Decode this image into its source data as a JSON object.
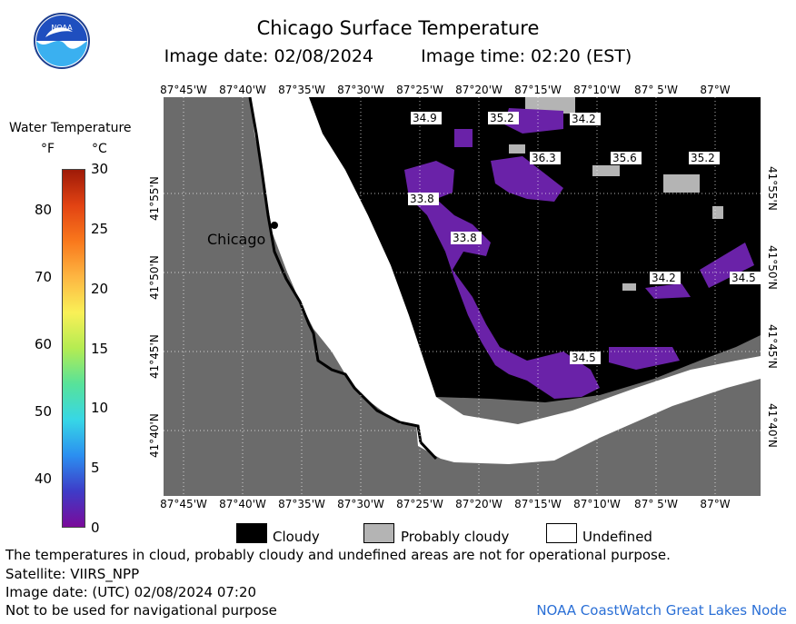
{
  "header": {
    "title": "Chicago Surface Temperature",
    "image_date_label": "Image date: 02/08/2024",
    "image_time_label": "Image time: 02:20 (EST)"
  },
  "logo": {
    "text": "NOAA"
  },
  "colorbar": {
    "title": "Water Temperature",
    "unit_f": "°F",
    "unit_c": "°C",
    "f_ticks": [
      "80",
      "70",
      "60",
      "50",
      "40"
    ],
    "c_ticks": [
      "30",
      "25",
      "20",
      "15",
      "10",
      "5",
      "0"
    ],
    "colors": [
      "#7a0a9a",
      "#3e3cc8",
      "#2b8ff0",
      "#37d7e6",
      "#57e29a",
      "#b4ec52",
      "#f9f057",
      "#fdb642",
      "#f9781c",
      "#e24313",
      "#9e1a08"
    ]
  },
  "map": {
    "city_label": "Chicago",
    "lon_labels": [
      "87°45'W",
      "87°40'W",
      "87°35'W",
      "87°30'W",
      "87°25'W",
      "87°20'W",
      "87°15'W",
      "87°10'W",
      "87° 5'W",
      "87°W"
    ],
    "lat_labels": [
      "41°55'N",
      "41°50'N",
      "41°45'N",
      "41°40'N"
    ],
    "temp_labels": [
      "34.9",
      "35.2",
      "34.2",
      "36.3",
      "35.6",
      "35.2",
      "33.8",
      "33.8",
      "34.2",
      "34.5",
      "34.5"
    ],
    "colors": {
      "land": "#6b6b6b",
      "cloudy": "#000000",
      "probably_cloudy": "#b4b4b4",
      "undefined": "#ffffff",
      "cold_water": "#6a22a8"
    }
  },
  "legend": {
    "cloudy": "Cloudy",
    "probably_cloudy": "Probably cloudy",
    "undefined": "Undefined"
  },
  "footer": {
    "disclaimer": "The temperatures in cloud, probably cloudy and undefined areas are not for operational purpose.",
    "satellite": "Satellite: VIIRS_NPP",
    "utc_date": "Image date: (UTC) 02/08/2024  07:20",
    "navigation": "Not to be used for navigational purpose",
    "credit": "NOAA CoastWatch Great Lakes Node"
  }
}
